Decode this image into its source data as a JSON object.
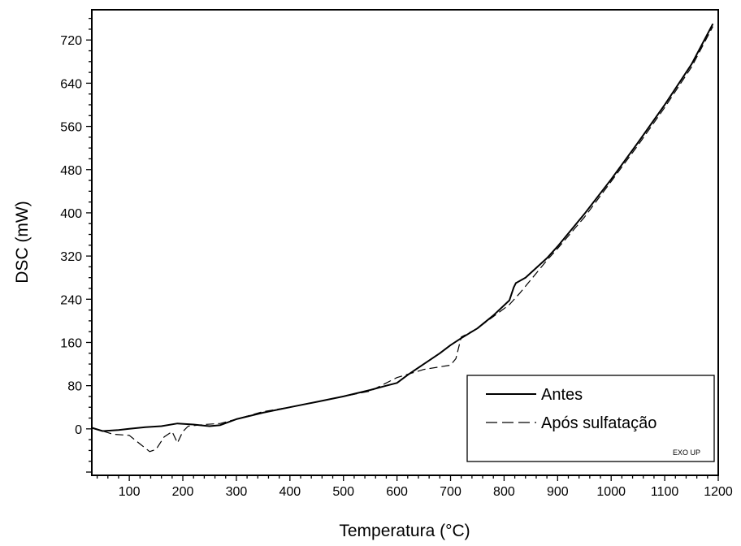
{
  "chart_data": {
    "type": "line",
    "title": "",
    "xlabel": "Temperatura (°C)",
    "ylabel": "DSC (mW)",
    "xlim": [
      30,
      1200
    ],
    "ylim": [
      -86,
      776
    ],
    "xticks": [
      100,
      200,
      300,
      400,
      500,
      600,
      700,
      800,
      900,
      1000,
      1100,
      1200
    ],
    "yticks": [
      0,
      80,
      160,
      240,
      320,
      400,
      480,
      560,
      640,
      720
    ],
    "grid": false,
    "legend_position": "bottom-right",
    "annotation": "EXO UP",
    "series": [
      {
        "name": "Antes",
        "color": "#000000",
        "style": "solid",
        "points": [
          [
            30,
            2
          ],
          [
            50,
            -4
          ],
          [
            80,
            -2
          ],
          [
            100,
            0
          ],
          [
            130,
            3
          ],
          [
            160,
            5
          ],
          [
            190,
            10
          ],
          [
            220,
            8
          ],
          [
            250,
            5
          ],
          [
            270,
            7
          ],
          [
            300,
            18
          ],
          [
            350,
            30
          ],
          [
            400,
            40
          ],
          [
            450,
            50
          ],
          [
            500,
            60
          ],
          [
            550,
            72
          ],
          [
            580,
            80
          ],
          [
            600,
            85
          ],
          [
            620,
            100
          ],
          [
            650,
            120
          ],
          [
            680,
            140
          ],
          [
            700,
            155
          ],
          [
            720,
            168
          ],
          [
            750,
            186
          ],
          [
            780,
            210
          ],
          [
            810,
            238
          ],
          [
            818,
            262
          ],
          [
            822,
            270
          ],
          [
            840,
            280
          ],
          [
            880,
            316
          ],
          [
            900,
            338
          ],
          [
            950,
            398
          ],
          [
            1000,
            462
          ],
          [
            1050,
            530
          ],
          [
            1100,
            600
          ],
          [
            1150,
            675
          ],
          [
            1190,
            750
          ]
        ]
      },
      {
        "name": "Após sulfatação",
        "color": "#000000",
        "style": "dashed",
        "points": [
          [
            30,
            2
          ],
          [
            50,
            -4
          ],
          [
            70,
            -10
          ],
          [
            100,
            -12
          ],
          [
            120,
            -28
          ],
          [
            138,
            -42
          ],
          [
            150,
            -38
          ],
          [
            165,
            -15
          ],
          [
            180,
            -5
          ],
          [
            190,
            -26
          ],
          [
            200,
            -5
          ],
          [
            210,
            5
          ],
          [
            240,
            8
          ],
          [
            270,
            10
          ],
          [
            300,
            18
          ],
          [
            350,
            32
          ],
          [
            400,
            40
          ],
          [
            450,
            50
          ],
          [
            500,
            60
          ],
          [
            550,
            70
          ],
          [
            600,
            95
          ],
          [
            650,
            110
          ],
          [
            700,
            118
          ],
          [
            710,
            130
          ],
          [
            720,
            170
          ],
          [
            750,
            186
          ],
          [
            780,
            208
          ],
          [
            810,
            230
          ],
          [
            830,
            252
          ],
          [
            880,
            312
          ],
          [
            900,
            334
          ],
          [
            950,
            392
          ],
          [
            1000,
            458
          ],
          [
            1050,
            525
          ],
          [
            1100,
            595
          ],
          [
            1150,
            670
          ],
          [
            1190,
            745
          ]
        ]
      }
    ]
  }
}
